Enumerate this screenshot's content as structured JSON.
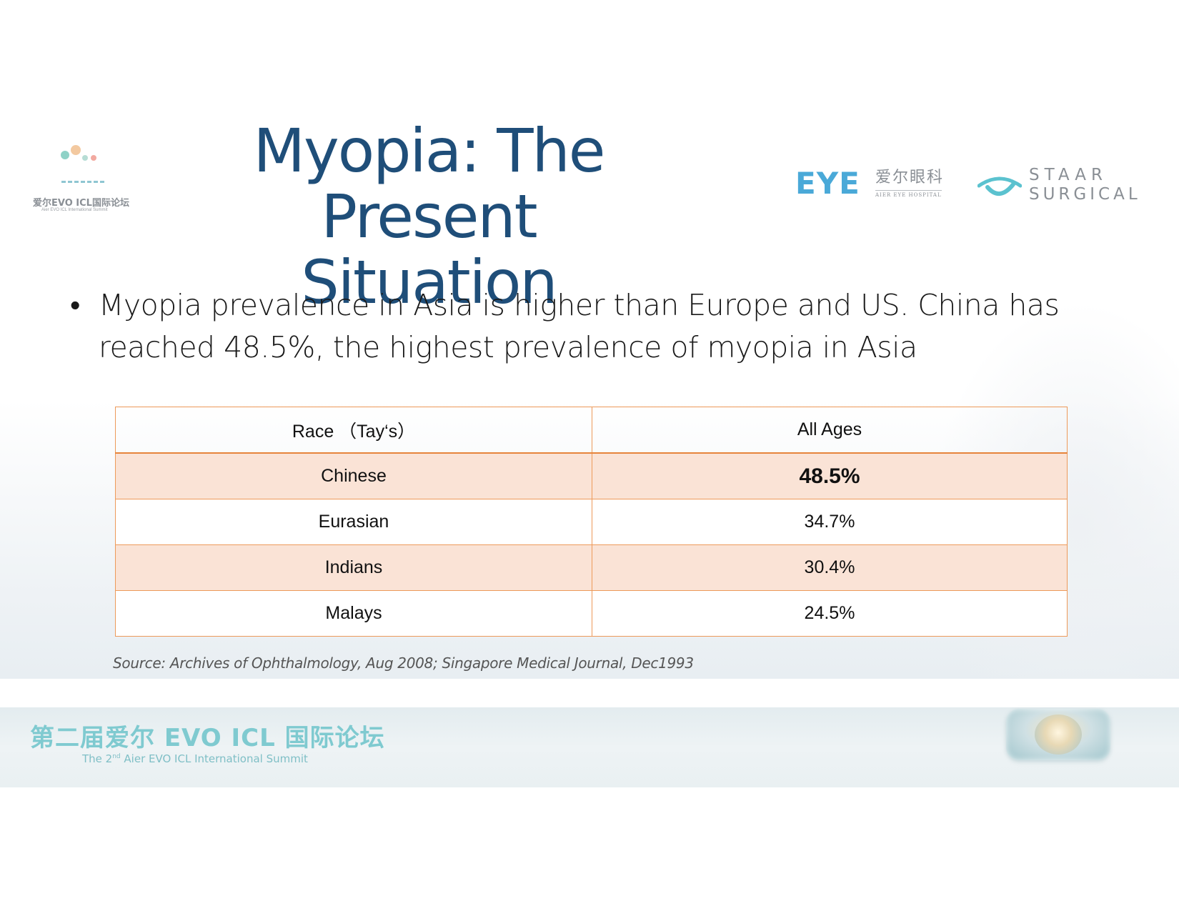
{
  "header": {
    "title_line1": "Myopia: The Present",
    "title_line2": "Situation",
    "summit_logo": {
      "text_cn": "爱尔EVO ICL国际论坛",
      "text_en": "Aier EVO ICL International Summit"
    },
    "eye_logo": {
      "mark": "EYE",
      "text_cn": "爱尔眼科",
      "text_en": "AIER EYE HOSPITAL"
    },
    "staar_logo": {
      "line1": "STAAR",
      "line2": "SURGICAL"
    }
  },
  "bullet": {
    "symbol": "•",
    "text": "Myopia prevalence in Asia is higher than Europe and US. China has reached 48.5%, the highest prevalence of myopia in Asia"
  },
  "table": {
    "headers": [
      "Race （Tay‘s）",
      "All Ages"
    ],
    "rows": [
      {
        "race": "Chinese",
        "value": "48.5%"
      },
      {
        "race": "Eurasian",
        "value": "34.7%"
      },
      {
        "race": "Indians",
        "value": "30.4%"
      },
      {
        "race": "Malays",
        "value": "24.5%"
      }
    ]
  },
  "source": "Source: Archives of Ophthalmology, Aug 2008; Singapore Medical Journal, Dec1993",
  "footer": {
    "title_cn": "第二届爱尔 EVO ICL 国际论坛",
    "subtitle_prefix": "The 2",
    "subtitle_sup": "nd",
    "subtitle_suffix": " Aier EVO ICL International Summit"
  },
  "colors": {
    "title": "#1f4e79",
    "table_border": "#ed9a5a",
    "table_shade": "#fae3d6",
    "footer_text": "#7fcad0",
    "eye_logo": "#4aa9d8",
    "staar_icon": "#5bc2cf"
  }
}
